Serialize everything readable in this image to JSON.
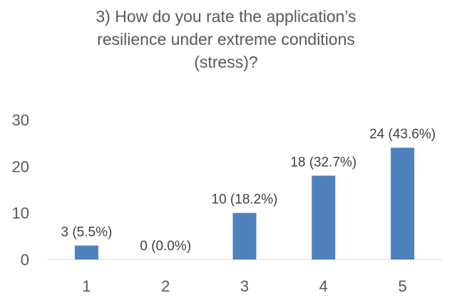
{
  "chart_data": {
    "type": "bar",
    "title_lines": [
      "3) How do you rate the application’s",
      "resilience under extreme conditions",
      "(stress)?"
    ],
    "categories": [
      "1",
      "2",
      "3",
      "4",
      "5"
    ],
    "values": [
      3,
      0,
      10,
      18,
      24
    ],
    "data_labels": [
      "3 (5.5%)",
      "0 (0.0%)",
      "10 (18.2%)",
      "18 (32.7%)",
      "24 (43.6%)"
    ],
    "ylim": [
      0,
      30
    ],
    "yticks": [
      0,
      10,
      20,
      30
    ],
    "ytick_labels": [
      "0",
      "10",
      "20",
      "30"
    ],
    "grid": false,
    "legend": "none",
    "bar_color": "#4f81bd"
  }
}
